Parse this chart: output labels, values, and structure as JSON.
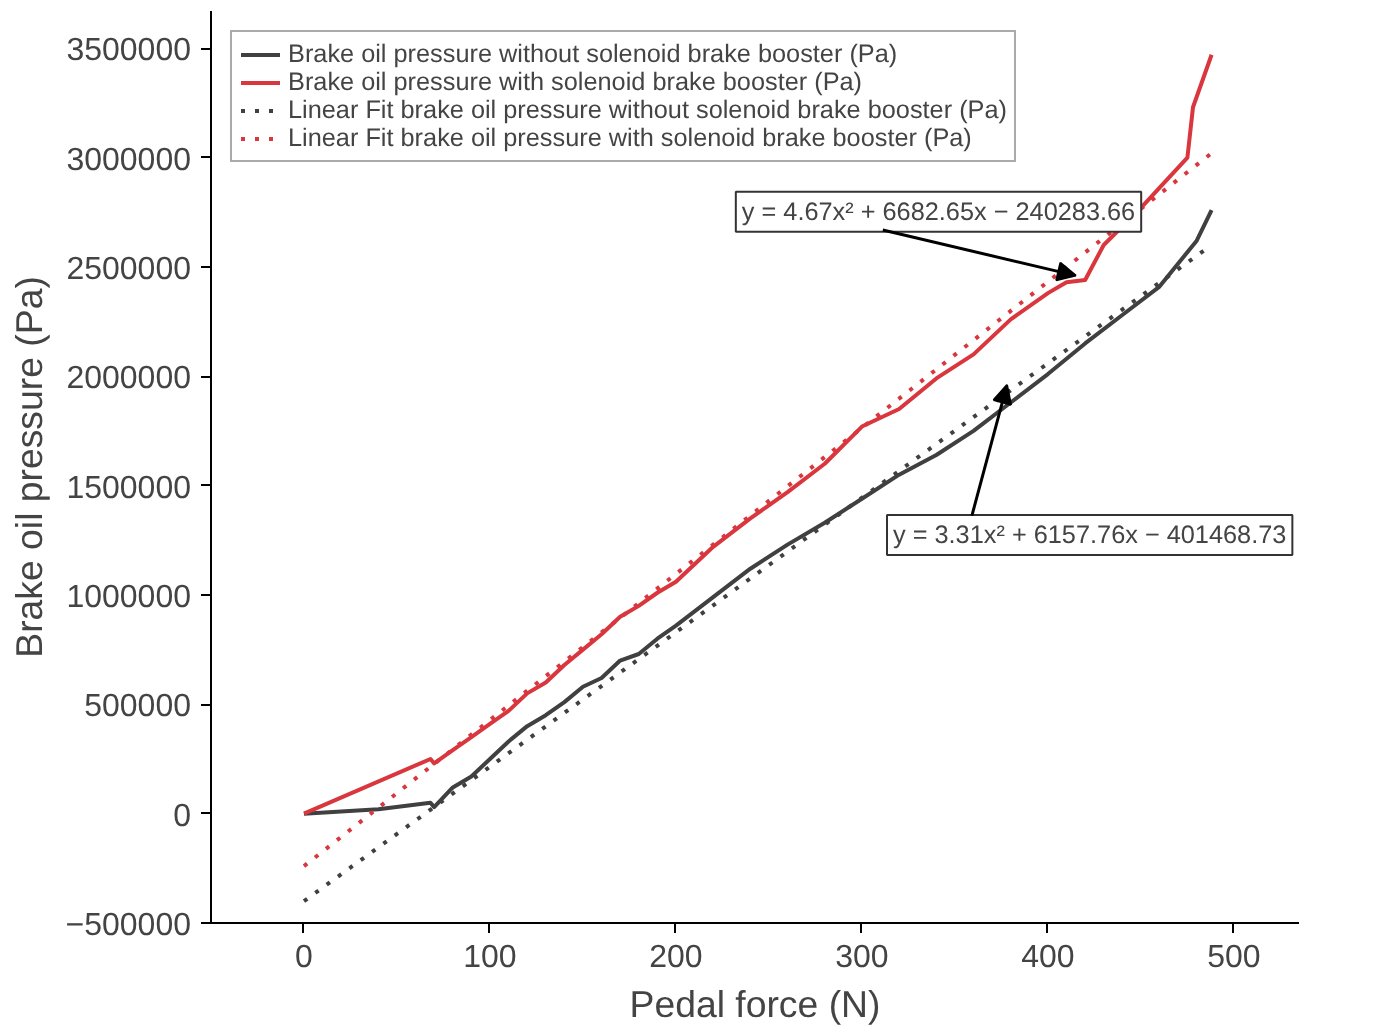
{
  "chart_data": {
    "type": "line",
    "xlabel": "Pedal force (N)",
    "ylabel": "Brake oil pressure (Pa)",
    "xlim": [
      -50,
      535
    ],
    "ylim": [
      -500000,
      3670000
    ],
    "xticks": [
      0,
      100,
      200,
      300,
      400,
      500
    ],
    "yticks": [
      -500000,
      0,
      500000,
      1000000,
      1500000,
      2000000,
      2500000,
      3000000,
      3500000
    ],
    "grid": false,
    "legend": "top left",
    "series": [
      {
        "name": "Brake oil pressure without solenoid brake booster (Pa)",
        "color": "#404040",
        "line_style": "solid",
        "x": [
          0,
          40,
          68,
          70,
          80,
          90,
          100,
          110,
          120,
          130,
          140,
          150,
          160,
          170,
          180,
          190,
          200,
          220,
          240,
          260,
          280,
          300,
          320,
          340,
          360,
          380,
          400,
          420,
          440,
          460,
          480,
          488
        ],
        "values": [
          0,
          20000,
          50000,
          30000,
          120000,
          170000,
          250000,
          330000,
          400000,
          450000,
          510000,
          580000,
          620000,
          700000,
          730000,
          800000,
          860000,
          990000,
          1120000,
          1230000,
          1330000,
          1440000,
          1550000,
          1640000,
          1750000,
          1880000,
          2010000,
          2150000,
          2280000,
          2410000,
          2620000,
          2760000
        ]
      },
      {
        "name": "Brake oil pressure with solenoid brake booster (Pa)",
        "color": "#d9363e",
        "line_style": "solid",
        "x": [
          0,
          68,
          70,
          80,
          90,
          100,
          110,
          120,
          130,
          140,
          150,
          160,
          170,
          180,
          190,
          200,
          220,
          240,
          260,
          280,
          300,
          320,
          340,
          360,
          380,
          400,
          410,
          420,
          430,
          450,
          475,
          478,
          488
        ],
        "values": [
          0,
          250000,
          230000,
          290000,
          350000,
          410000,
          470000,
          550000,
          600000,
          680000,
          750000,
          820000,
          900000,
          950000,
          1010000,
          1060000,
          1220000,
          1350000,
          1470000,
          1600000,
          1770000,
          1850000,
          1990000,
          2100000,
          2260000,
          2380000,
          2430000,
          2440000,
          2600000,
          2770000,
          3000000,
          3230000,
          3470000
        ]
      },
      {
        "name": "Linear Fit brake oil pressure without solenoid brake booster (Pa)",
        "color": "#404040",
        "line_style": "dotted",
        "x": [
          0,
          488
        ],
        "values": [
          -400000,
          2600000
        ]
      },
      {
        "name": "Linear Fit brake oil pressure with solenoid brake booster (Pa)",
        "color": "#d9363e",
        "line_style": "dotted",
        "x": [
          0,
          488
        ],
        "values": [
          -240000,
          3020000
        ]
      }
    ],
    "annotations": [
      {
        "text": "y = 4.67x² + 6682.65x − 240283.66",
        "x": 415,
        "y": 2460000
      },
      {
        "text": "y = 3.31x² + 6157.76x − 401468.73",
        "x": 378,
        "y": 1960000
      }
    ]
  }
}
